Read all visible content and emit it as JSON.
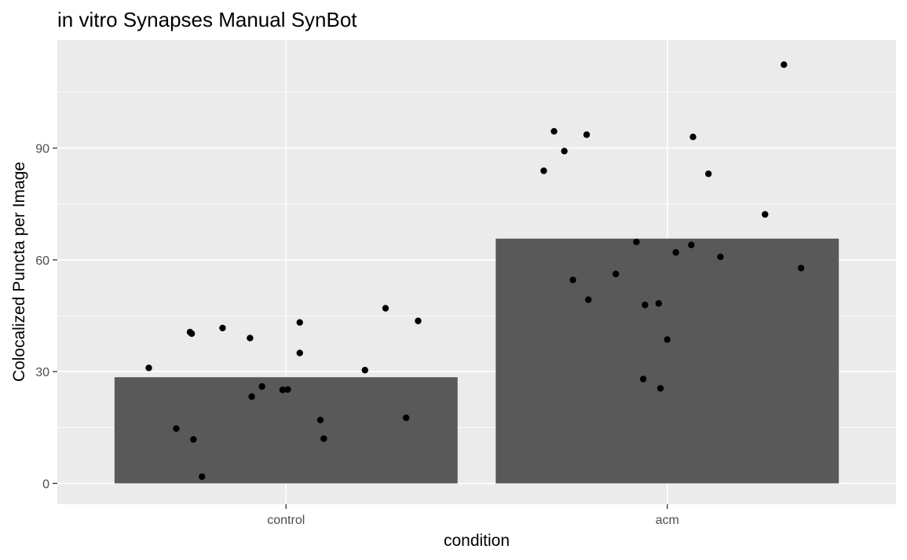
{
  "chart_data": {
    "type": "bar",
    "title": "in vitro Synapses Manual SynBot",
    "xlabel": "condition",
    "ylabel": "Colocalized Puncta per Image",
    "categories": [
      "control",
      "acm"
    ],
    "values": [
      28.5,
      65.7
    ],
    "ylim": [
      -5.6,
      119
    ],
    "yticks": [
      0,
      30,
      60,
      90
    ],
    "grid": true,
    "legend": "none",
    "colors": {
      "panel": "#ebebeb",
      "grid": "#ffffff",
      "bar": "#595959",
      "point": "#000000",
      "tick_text": "#4d4d4d"
    },
    "points": [
      {
        "name": "control",
        "jitter": [
          -0.8,
          -0.64,
          -0.56,
          -0.55,
          -0.54,
          -0.49,
          -0.37,
          -0.21,
          -0.2,
          -0.14,
          -0.02,
          0.01,
          0.08,
          0.08,
          0.2,
          0.22,
          0.46,
          0.58,
          0.7,
          0.77
        ],
        "values": [
          31.0,
          14.7,
          40.6,
          40.2,
          11.8,
          1.8,
          41.7,
          39.0,
          23.3,
          26.0,
          25.1,
          25.2,
          43.2,
          35.0,
          17.0,
          12.0,
          30.4,
          47.0,
          17.6,
          43.6
        ]
      },
      {
        "name": "acm",
        "jitter": [
          -0.72,
          -0.66,
          -0.6,
          -0.55,
          -0.47,
          -0.46,
          -0.3,
          -0.18,
          -0.14,
          -0.13,
          -0.05,
          -0.04,
          0.0,
          0.05,
          0.14,
          0.15,
          0.24,
          0.31,
          0.57,
          0.68,
          0.78
        ],
        "values": [
          83.9,
          94.5,
          89.2,
          54.6,
          93.6,
          49.3,
          56.2,
          64.8,
          28.0,
          47.9,
          48.3,
          25.5,
          38.6,
          62.0,
          64.0,
          93.0,
          83.1,
          60.8,
          72.2,
          112.4,
          57.8
        ]
      }
    ]
  }
}
